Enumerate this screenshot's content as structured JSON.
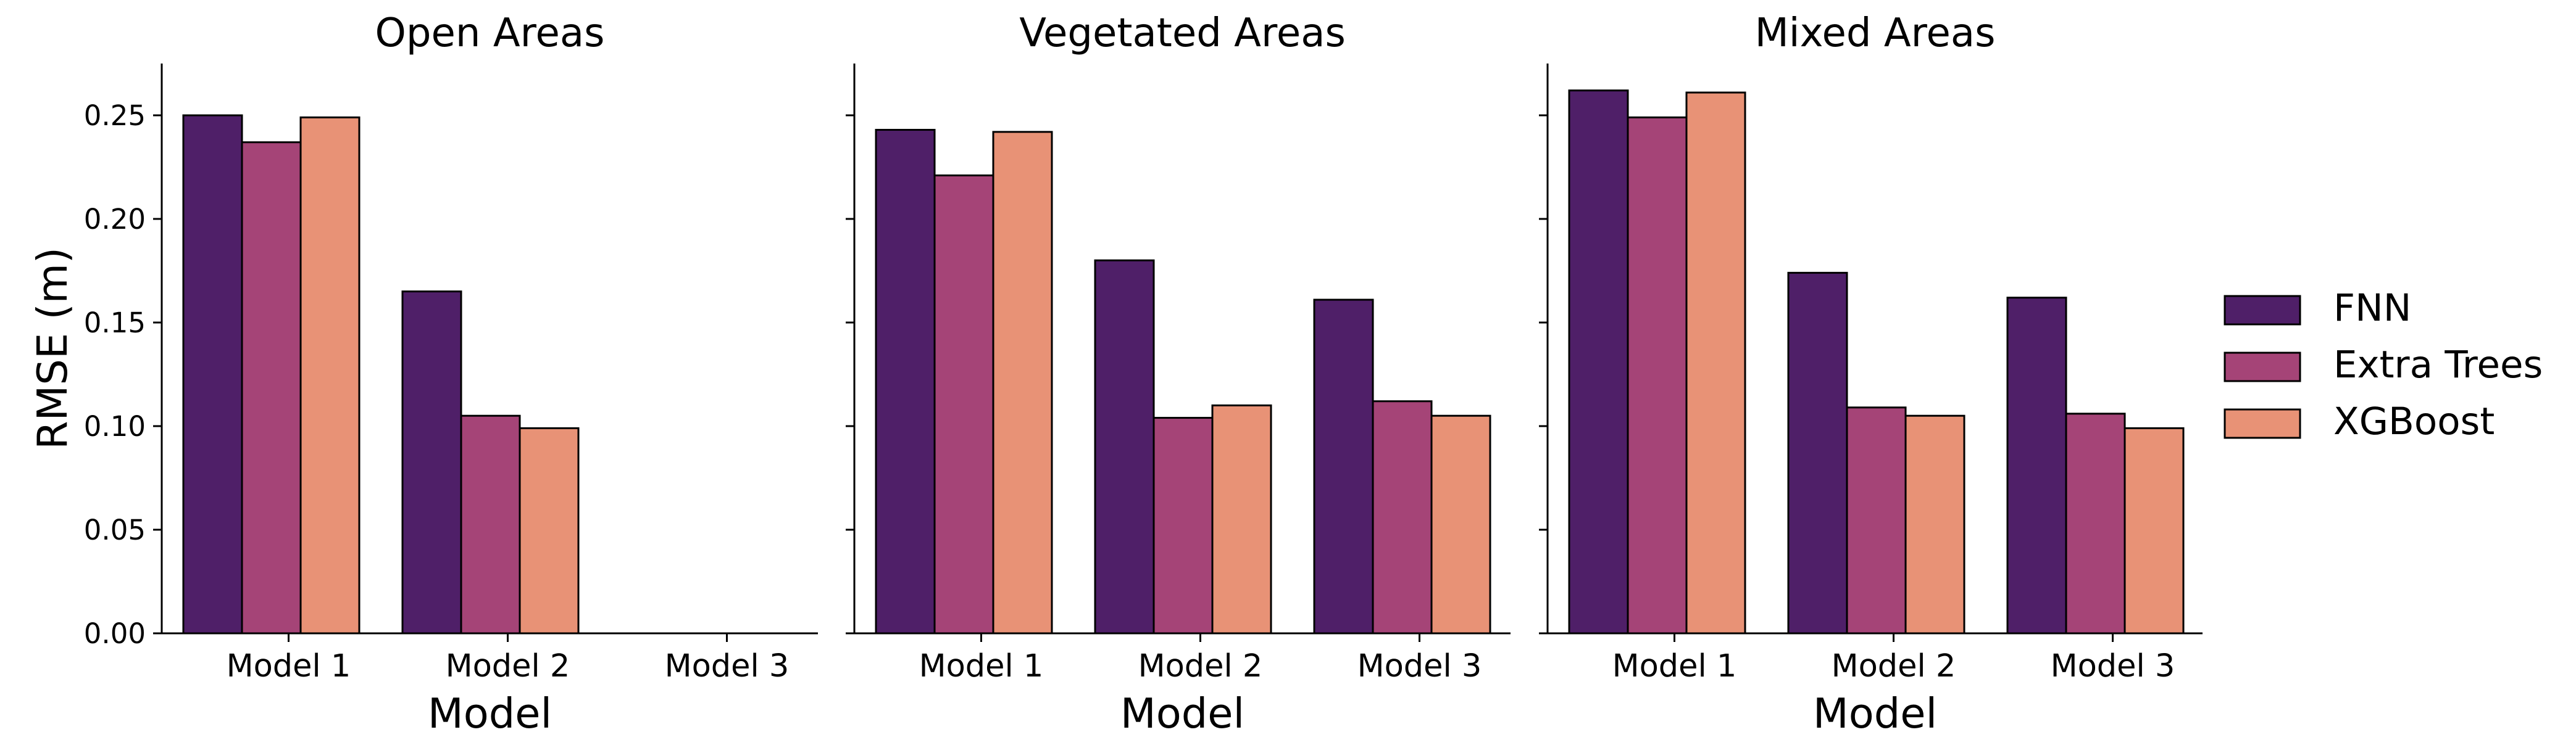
{
  "chart_data": [
    {
      "type": "bar",
      "title": "Open Areas",
      "xlabel": "Model",
      "ylabel": "RMSE (m)",
      "categories": [
        "Model 1",
        "Model 2",
        "Model 3"
      ],
      "series": [
        {
          "name": "FNN",
          "values": [
            0.25,
            0.165,
            null
          ]
        },
        {
          "name": "Extra Trees",
          "values": [
            0.237,
            0.105,
            null
          ]
        },
        {
          "name": "XGBoost",
          "values": [
            0.249,
            0.099,
            null
          ]
        }
      ],
      "ylim": [
        0,
        0.275
      ],
      "yticks": [
        "0.00",
        "0.05",
        "0.10",
        "0.15",
        "0.20",
        "0.25"
      ]
    },
    {
      "type": "bar",
      "title": "Vegetated Areas",
      "xlabel": "Model",
      "ylabel": "",
      "categories": [
        "Model 1",
        "Model 2",
        "Model 3"
      ],
      "series": [
        {
          "name": "FNN",
          "values": [
            0.243,
            0.18,
            0.161
          ]
        },
        {
          "name": "Extra Trees",
          "values": [
            0.221,
            0.104,
            0.112
          ]
        },
        {
          "name": "XGBoost",
          "values": [
            0.242,
            0.11,
            0.105
          ]
        }
      ],
      "ylim": [
        0,
        0.275
      ],
      "yticks": []
    },
    {
      "type": "bar",
      "title": "Mixed Areas",
      "xlabel": "Model",
      "ylabel": "",
      "categories": [
        "Model 1",
        "Model 2",
        "Model 3"
      ],
      "series": [
        {
          "name": "FNN",
          "values": [
            0.262,
            0.174,
            0.162
          ]
        },
        {
          "name": "Extra Trees",
          "values": [
            0.249,
            0.109,
            0.106
          ]
        },
        {
          "name": "XGBoost",
          "values": [
            0.261,
            0.105,
            0.099
          ]
        }
      ],
      "ylim": [
        0,
        0.275
      ],
      "yticks": []
    }
  ],
  "legend": {
    "placement": "right",
    "entries": [
      "FNN",
      "Extra Trees",
      "XGBoost"
    ]
  },
  "colors": {
    "FNN": "#4f1f68",
    "Extra Trees": "#a54477",
    "XGBoost": "#e89276"
  },
  "grid": false
}
